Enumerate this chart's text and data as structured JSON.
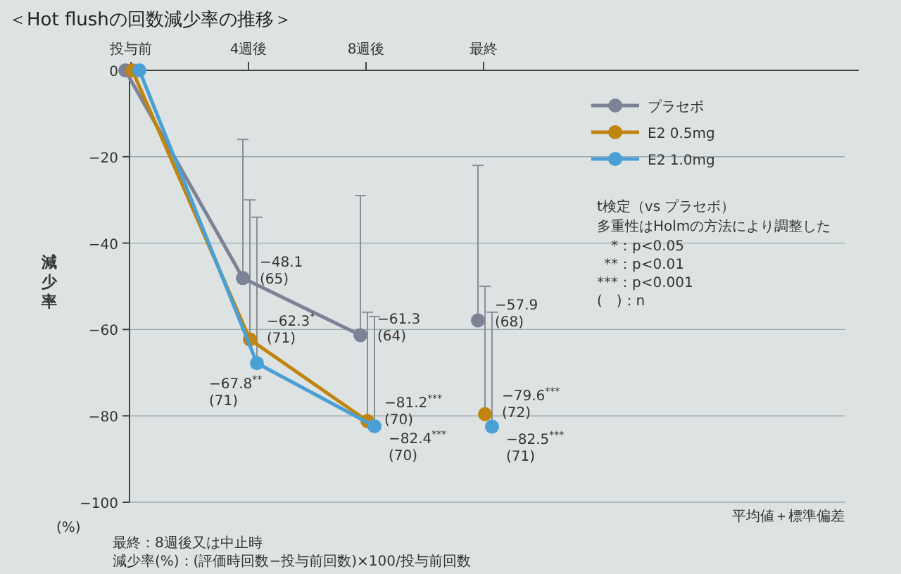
{
  "chart_data": {
    "type": "line",
    "title": "＜Hot flushの回数減少率の推移＞",
    "ylabel": "減少率",
    "categories": [
      "投与前",
      "4週後",
      "8週後",
      "最終"
    ],
    "ylim": [
      -100,
      0
    ],
    "yticks": [
      0,
      -20,
      -40,
      -60,
      -80,
      -100
    ],
    "grid": "y",
    "legend": "top right",
    "marker": "circle",
    "line_style": "solid",
    "series": [
      {
        "name": "プラセボ",
        "type": "line",
        "color": "#7d8294",
        "values": [
          0,
          -48.1,
          -61.3,
          null
        ],
        "errors": [
          null,
          [
            -48.1,
            -16
          ],
          [
            -61.3,
            -29
          ],
          null
        ],
        "value_labels": [
          null,
          "−48.1\n(65)",
          "−61.3\n(64)",
          null
        ]
      },
      {
        "name": "E2 0.5mg",
        "type": "line",
        "color": "#c0850e",
        "values": [
          0,
          -62.3,
          -81.2,
          null
        ],
        "errors": [
          null,
          [
            -62.3,
            -30
          ],
          [
            -81.2,
            -56
          ],
          null
        ],
        "value_labels": [
          null,
          "−62.3$^{*}$\n(71)",
          "−81.2$^{***}$\n(70)",
          null
        ]
      },
      {
        "name": "E2 1.0mg",
        "type": "line",
        "color": "#4a9fd4",
        "values": [
          0,
          -67.8,
          -82.4,
          null
        ],
        "errors": [
          null,
          [
            -67.8,
            -34
          ],
          [
            -82.4,
            -57
          ],
          null
        ],
        "value_labels": [
          null,
          "−67.8$^{**}$\n(71)",
          "−82.4$^{***}$\n(70)",
          null
        ]
      },
      {
        "type": "scatter",
        "color": "#7d8294",
        "values": [
          null,
          null,
          null,
          -57.9
        ],
        "errors": [
          null,
          null,
          null,
          [
            -57.9,
            -22
          ]
        ],
        "value_labels": [
          null,
          null,
          null,
          "−57.9\n(68)"
        ]
      },
      {
        "type": "scatter",
        "color": "#c0850e",
        "values": [
          null,
          null,
          null,
          -79.6
        ],
        "errors": [
          null,
          null,
          null,
          [
            -79.6,
            -50
          ]
        ],
        "value_labels": [
          null,
          null,
          null,
          "−79.6$^{***}$\n(72)"
        ]
      },
      {
        "type": "scatter",
        "color": "#4a9fd4",
        "values": [
          null,
          null,
          null,
          -82.5
        ],
        "errors": [
          null,
          null,
          null,
          [
            -82.5,
            -56
          ]
        ],
        "value_labels": [
          null,
          null,
          null,
          "−82.5$^{***}$\n(71)"
        ]
      }
    ],
    "annotations": [
      "t検定（vs プラセボ）",
      "多重性はHolmの方法により調整した",
      "*：p<0.05",
      "**：p<0.01",
      "***：p<0.001",
      "(　)：n",
      "(%)",
      "平均値＋標準偏差",
      "最終：8週後又は中止時",
      "減少率(%)：(評価時回数−投与前回数)×100/投与前回数"
    ]
  }
}
